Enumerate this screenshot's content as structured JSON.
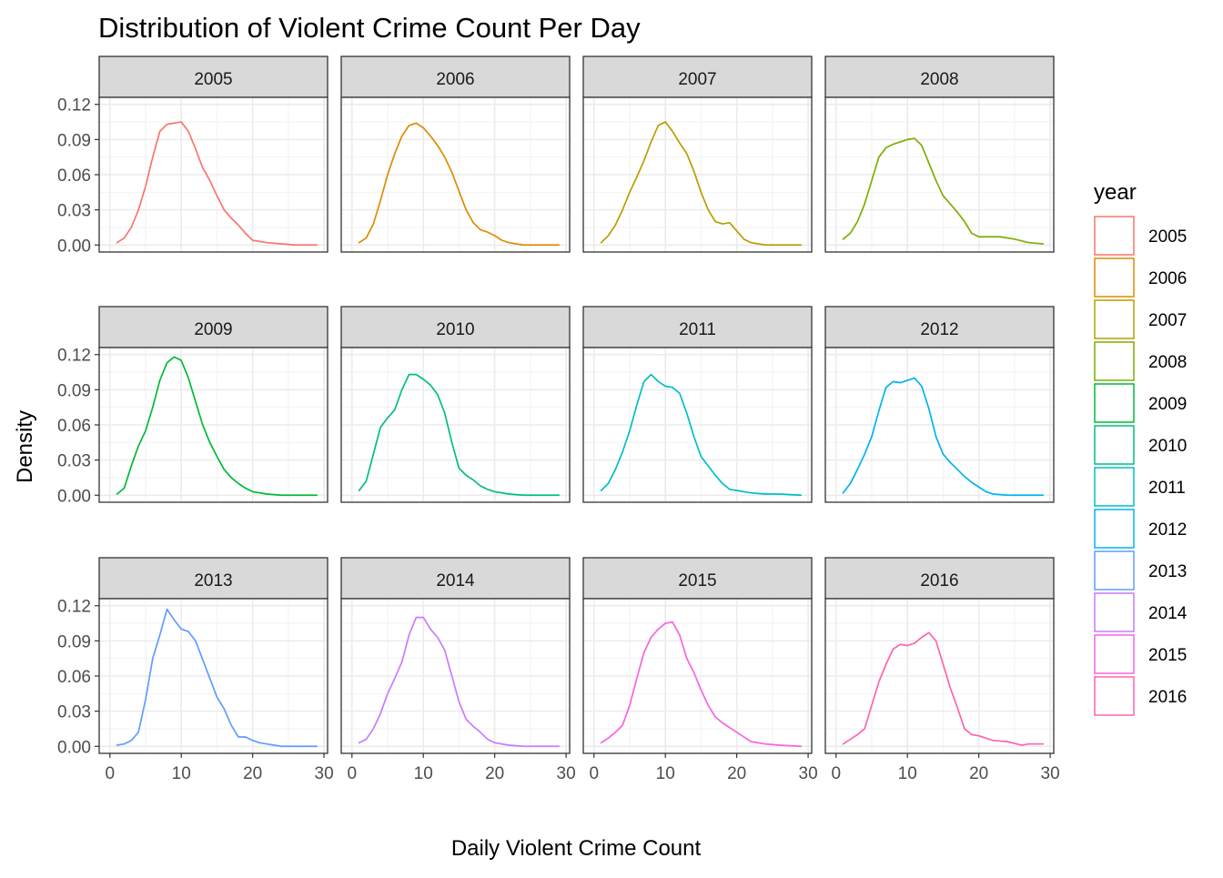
{
  "chart_data": {
    "type": "line",
    "title": "Distribution of Violent Crime Count Per Day",
    "xlabel": "Daily Violent Crime Count",
    "ylabel": "Density",
    "xlim": [
      0,
      30
    ],
    "ylim": [
      0,
      0.12
    ],
    "x_ticks": [
      0,
      10,
      20,
      30
    ],
    "x_tick_labels": [
      "0",
      "10",
      "20",
      "30"
    ],
    "y_ticks": [
      0,
      0.03,
      0.06,
      0.09,
      0.12
    ],
    "y_tick_labels": [
      "0.00",
      "0.03",
      "0.06",
      "0.09",
      "0.12"
    ],
    "grid": true,
    "legend": {
      "title": "year",
      "placement": "right"
    },
    "facet_layout": {
      "rows": 3,
      "cols": 4
    },
    "panels": [
      {
        "year": "2005",
        "color": "#F8766D",
        "points": [
          [
            1,
            0.002
          ],
          [
            2,
            0.006
          ],
          [
            3,
            0.015
          ],
          [
            4,
            0.03
          ],
          [
            5,
            0.05
          ],
          [
            6,
            0.075
          ],
          [
            7,
            0.097
          ],
          [
            8,
            0.103
          ],
          [
            9,
            0.104
          ],
          [
            10,
            0.105
          ],
          [
            11,
            0.097
          ],
          [
            12,
            0.082
          ],
          [
            13,
            0.066
          ],
          [
            14,
            0.055
          ],
          [
            15,
            0.042
          ],
          [
            16,
            0.03
          ],
          [
            17,
            0.023
          ],
          [
            18,
            0.017
          ],
          [
            19,
            0.01
          ],
          [
            20,
            0.004
          ],
          [
            22,
            0.002
          ],
          [
            24,
            0.001
          ],
          [
            26,
            0.0
          ],
          [
            29,
            0.0
          ]
        ]
      },
      {
        "year": "2006",
        "color": "#DE8C00",
        "points": [
          [
            1,
            0.002
          ],
          [
            2,
            0.006
          ],
          [
            3,
            0.018
          ],
          [
            4,
            0.038
          ],
          [
            5,
            0.06
          ],
          [
            6,
            0.078
          ],
          [
            7,
            0.093
          ],
          [
            8,
            0.102
          ],
          [
            9,
            0.104
          ],
          [
            10,
            0.1
          ],
          [
            11,
            0.093
          ],
          [
            12,
            0.085
          ],
          [
            13,
            0.075
          ],
          [
            14,
            0.062
          ],
          [
            15,
            0.046
          ],
          [
            16,
            0.03
          ],
          [
            17,
            0.019
          ],
          [
            18,
            0.013
          ],
          [
            19,
            0.011
          ],
          [
            20,
            0.008
          ],
          [
            21,
            0.004
          ],
          [
            22,
            0.002
          ],
          [
            24,
            0.0
          ],
          [
            29,
            0.0
          ]
        ]
      },
      {
        "year": "2007",
        "color": "#B79F00",
        "points": [
          [
            1,
            0.002
          ],
          [
            2,
            0.008
          ],
          [
            3,
            0.017
          ],
          [
            4,
            0.03
          ],
          [
            5,
            0.045
          ],
          [
            6,
            0.058
          ],
          [
            7,
            0.072
          ],
          [
            8,
            0.088
          ],
          [
            9,
            0.102
          ],
          [
            10,
            0.105
          ],
          [
            11,
            0.097
          ],
          [
            12,
            0.087
          ],
          [
            13,
            0.078
          ],
          [
            14,
            0.063
          ],
          [
            15,
            0.045
          ],
          [
            16,
            0.03
          ],
          [
            17,
            0.02
          ],
          [
            18,
            0.018
          ],
          [
            19,
            0.019
          ],
          [
            20,
            0.012
          ],
          [
            21,
            0.005
          ],
          [
            22,
            0.002
          ],
          [
            24,
            0.0
          ],
          [
            29,
            0.0
          ]
        ]
      },
      {
        "year": "2008",
        "color": "#7CAE00",
        "points": [
          [
            1,
            0.005
          ],
          [
            2,
            0.01
          ],
          [
            3,
            0.02
          ],
          [
            4,
            0.035
          ],
          [
            5,
            0.055
          ],
          [
            6,
            0.075
          ],
          [
            7,
            0.083
          ],
          [
            8,
            0.086
          ],
          [
            9,
            0.088
          ],
          [
            10,
            0.09
          ],
          [
            11,
            0.091
          ],
          [
            12,
            0.085
          ],
          [
            13,
            0.07
          ],
          [
            14,
            0.055
          ],
          [
            15,
            0.042
          ],
          [
            16,
            0.035
          ],
          [
            17,
            0.028
          ],
          [
            18,
            0.02
          ],
          [
            19,
            0.01
          ],
          [
            20,
            0.007
          ],
          [
            22,
            0.007
          ],
          [
            23,
            0.007
          ],
          [
            25,
            0.005
          ],
          [
            27,
            0.002
          ],
          [
            29,
            0.001
          ]
        ]
      },
      {
        "year": "2009",
        "color": "#00BA38",
        "points": [
          [
            1,
            0.001
          ],
          [
            2,
            0.006
          ],
          [
            3,
            0.025
          ],
          [
            4,
            0.042
          ],
          [
            5,
            0.055
          ],
          [
            6,
            0.075
          ],
          [
            7,
            0.098
          ],
          [
            8,
            0.113
          ],
          [
            9,
            0.118
          ],
          [
            10,
            0.115
          ],
          [
            11,
            0.1
          ],
          [
            12,
            0.08
          ],
          [
            13,
            0.06
          ],
          [
            14,
            0.045
          ],
          [
            15,
            0.033
          ],
          [
            16,
            0.022
          ],
          [
            17,
            0.015
          ],
          [
            18,
            0.01
          ],
          [
            19,
            0.006
          ],
          [
            20,
            0.003
          ],
          [
            22,
            0.001
          ],
          [
            24,
            0.0
          ],
          [
            29,
            0.0
          ]
        ]
      },
      {
        "year": "2010",
        "color": "#00BF7D",
        "points": [
          [
            1,
            0.004
          ],
          [
            2,
            0.012
          ],
          [
            3,
            0.035
          ],
          [
            4,
            0.058
          ],
          [
            5,
            0.066
          ],
          [
            6,
            0.073
          ],
          [
            7,
            0.09
          ],
          [
            8,
            0.103
          ],
          [
            9,
            0.103
          ],
          [
            10,
            0.099
          ],
          [
            11,
            0.094
          ],
          [
            12,
            0.086
          ],
          [
            13,
            0.07
          ],
          [
            14,
            0.045
          ],
          [
            15,
            0.023
          ],
          [
            16,
            0.017
          ],
          [
            17,
            0.013
          ],
          [
            18,
            0.008
          ],
          [
            19,
            0.005
          ],
          [
            20,
            0.003
          ],
          [
            22,
            0.001
          ],
          [
            24,
            0.0
          ],
          [
            29,
            0.0
          ]
        ]
      },
      {
        "year": "2011",
        "color": "#00BFC4",
        "points": [
          [
            1,
            0.004
          ],
          [
            2,
            0.01
          ],
          [
            3,
            0.022
          ],
          [
            4,
            0.037
          ],
          [
            5,
            0.055
          ],
          [
            6,
            0.077
          ],
          [
            7,
            0.097
          ],
          [
            8,
            0.103
          ],
          [
            9,
            0.097
          ],
          [
            10,
            0.093
          ],
          [
            11,
            0.092
          ],
          [
            12,
            0.087
          ],
          [
            13,
            0.07
          ],
          [
            14,
            0.05
          ],
          [
            15,
            0.033
          ],
          [
            16,
            0.025
          ],
          [
            17,
            0.017
          ],
          [
            18,
            0.01
          ],
          [
            19,
            0.005
          ],
          [
            20,
            0.004
          ],
          [
            22,
            0.002
          ],
          [
            24,
            0.001
          ],
          [
            26,
            0.001
          ],
          [
            29,
            0.0
          ]
        ]
      },
      {
        "year": "2012",
        "color": "#00B4F0",
        "points": [
          [
            1,
            0.002
          ],
          [
            2,
            0.01
          ],
          [
            3,
            0.022
          ],
          [
            4,
            0.035
          ],
          [
            5,
            0.05
          ],
          [
            6,
            0.072
          ],
          [
            7,
            0.092
          ],
          [
            8,
            0.097
          ],
          [
            9,
            0.096
          ],
          [
            10,
            0.098
          ],
          [
            11,
            0.1
          ],
          [
            12,
            0.093
          ],
          [
            13,
            0.074
          ],
          [
            14,
            0.05
          ],
          [
            15,
            0.035
          ],
          [
            16,
            0.028
          ],
          [
            17,
            0.022
          ],
          [
            18,
            0.016
          ],
          [
            19,
            0.011
          ],
          [
            20,
            0.007
          ],
          [
            21,
            0.003
          ],
          [
            22,
            0.001
          ],
          [
            24,
            0.0
          ],
          [
            29,
            0.0
          ]
        ]
      },
      {
        "year": "2013",
        "color": "#619CFF",
        "points": [
          [
            1,
            0.001
          ],
          [
            2,
            0.002
          ],
          [
            3,
            0.005
          ],
          [
            4,
            0.012
          ],
          [
            5,
            0.04
          ],
          [
            6,
            0.075
          ],
          [
            7,
            0.095
          ],
          [
            8,
            0.117
          ],
          [
            9,
            0.108
          ],
          [
            10,
            0.1
          ],
          [
            11,
            0.098
          ],
          [
            12,
            0.09
          ],
          [
            13,
            0.074
          ],
          [
            14,
            0.058
          ],
          [
            15,
            0.042
          ],
          [
            16,
            0.032
          ],
          [
            17,
            0.018
          ],
          [
            18,
            0.008
          ],
          [
            19,
            0.008
          ],
          [
            20,
            0.005
          ],
          [
            21,
            0.003
          ],
          [
            22,
            0.002
          ],
          [
            24,
            0.0
          ],
          [
            29,
            0.0
          ]
        ]
      },
      {
        "year": "2014",
        "color": "#C77CFF",
        "points": [
          [
            1,
            0.003
          ],
          [
            2,
            0.006
          ],
          [
            3,
            0.015
          ],
          [
            4,
            0.028
          ],
          [
            5,
            0.045
          ],
          [
            6,
            0.058
          ],
          [
            7,
            0.072
          ],
          [
            8,
            0.095
          ],
          [
            9,
            0.11
          ],
          [
            10,
            0.11
          ],
          [
            11,
            0.1
          ],
          [
            12,
            0.093
          ],
          [
            13,
            0.082
          ],
          [
            14,
            0.06
          ],
          [
            15,
            0.038
          ],
          [
            16,
            0.023
          ],
          [
            17,
            0.017
          ],
          [
            18,
            0.012
          ],
          [
            19,
            0.006
          ],
          [
            20,
            0.003
          ],
          [
            22,
            0.001
          ],
          [
            24,
            0.0
          ],
          [
            29,
            0.0
          ]
        ]
      },
      {
        "year": "2015",
        "color": "#F564E3",
        "points": [
          [
            1,
            0.003
          ],
          [
            2,
            0.007
          ],
          [
            3,
            0.012
          ],
          [
            4,
            0.018
          ],
          [
            5,
            0.035
          ],
          [
            6,
            0.058
          ],
          [
            7,
            0.08
          ],
          [
            8,
            0.093
          ],
          [
            9,
            0.1
          ],
          [
            10,
            0.105
          ],
          [
            11,
            0.106
          ],
          [
            12,
            0.095
          ],
          [
            13,
            0.075
          ],
          [
            14,
            0.063
          ],
          [
            15,
            0.048
          ],
          [
            16,
            0.035
          ],
          [
            17,
            0.025
          ],
          [
            18,
            0.02
          ],
          [
            19,
            0.016
          ],
          [
            20,
            0.012
          ],
          [
            21,
            0.008
          ],
          [
            22,
            0.004
          ],
          [
            24,
            0.002
          ],
          [
            26,
            0.001
          ],
          [
            29,
            0.0
          ]
        ]
      },
      {
        "year": "2016",
        "color": "#FF64B0",
        "points": [
          [
            1,
            0.002
          ],
          [
            2,
            0.006
          ],
          [
            3,
            0.01
          ],
          [
            4,
            0.015
          ],
          [
            5,
            0.035
          ],
          [
            6,
            0.055
          ],
          [
            7,
            0.07
          ],
          [
            8,
            0.083
          ],
          [
            9,
            0.087
          ],
          [
            10,
            0.086
          ],
          [
            11,
            0.088
          ],
          [
            12,
            0.093
          ],
          [
            13,
            0.097
          ],
          [
            14,
            0.09
          ],
          [
            15,
            0.07
          ],
          [
            16,
            0.05
          ],
          [
            17,
            0.033
          ],
          [
            18,
            0.015
          ],
          [
            19,
            0.01
          ],
          [
            20,
            0.009
          ],
          [
            21,
            0.007
          ],
          [
            22,
            0.005
          ],
          [
            24,
            0.004
          ],
          [
            26,
            0.001
          ],
          [
            27,
            0.002
          ],
          [
            29,
            0.002
          ]
        ]
      }
    ]
  }
}
